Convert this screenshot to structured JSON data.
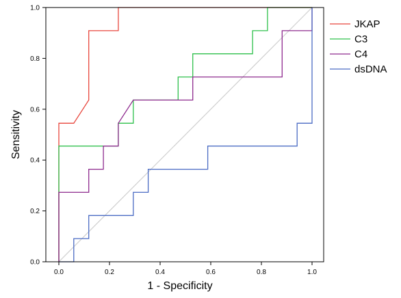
{
  "chart_data": {
    "type": "line",
    "xlabel": "1 - Specificity",
    "ylabel": "Sensitivity",
    "xlim": [
      0.0,
      1.0
    ],
    "ylim": [
      0.0,
      1.0
    ],
    "x_ticks": [
      "0.0",
      "0.2",
      "0.4",
      "0.6",
      "0.8",
      "1.0"
    ],
    "y_ticks": [
      "0.0",
      "0.2",
      "0.4",
      "0.6",
      "0.8",
      "1.0"
    ],
    "grid": false,
    "legend_position": "right",
    "reference_line": {
      "x": [
        0,
        1
      ],
      "y": [
        0,
        1
      ],
      "color": "#cfcfcf"
    },
    "series": [
      {
        "name": "JKAP",
        "color": "#e8453c",
        "x": [
          0,
          0,
          0.059,
          0.118,
          0.118,
          0.235,
          0.235,
          1.0
        ],
        "y": [
          0,
          0.545,
          0.545,
          0.636,
          0.909,
          0.909,
          1.0,
          1.0
        ]
      },
      {
        "name": "C3",
        "color": "#2ec04b",
        "x": [
          0,
          0,
          0.176,
          0.235,
          0.235,
          0.294,
          0.294,
          0.471,
          0.471,
          0.529,
          0.529,
          0.765,
          0.765,
          0.824,
          0.824,
          1.0
        ],
        "y": [
          0,
          0.455,
          0.455,
          0.455,
          0.545,
          0.545,
          0.636,
          0.636,
          0.727,
          0.727,
          0.818,
          0.818,
          0.909,
          0.909,
          1.0,
          1.0
        ]
      },
      {
        "name": "C4",
        "color": "#8e2a8e",
        "x": [
          0,
          0,
          0.118,
          0.118,
          0.176,
          0.176,
          0.235,
          0.235,
          0.294,
          0.529,
          0.529,
          0.882,
          0.882,
          1.0,
          1.0
        ],
        "y": [
          0,
          0.273,
          0.273,
          0.364,
          0.364,
          0.455,
          0.455,
          0.545,
          0.636,
          0.636,
          0.727,
          0.727,
          0.909,
          0.909,
          1.0
        ]
      },
      {
        "name": "dsDNA",
        "color": "#4a6bc4",
        "x": [
          0,
          0.059,
          0.059,
          0.118,
          0.118,
          0.294,
          0.294,
          0.353,
          0.353,
          0.588,
          0.588,
          0.941,
          0.941,
          1.0,
          1.0
        ],
        "y": [
          0,
          0,
          0.091,
          0.091,
          0.182,
          0.182,
          0.273,
          0.273,
          0.364,
          0.364,
          0.455,
          0.455,
          0.545,
          0.545,
          1.0
        ]
      }
    ]
  }
}
